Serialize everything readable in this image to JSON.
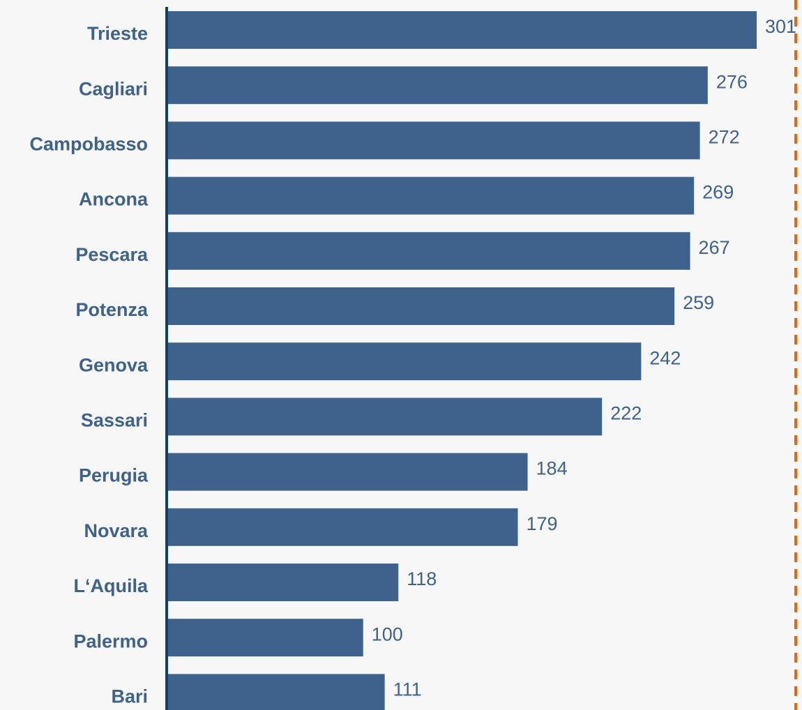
{
  "chart_data": {
    "type": "bar",
    "orientation": "horizontal",
    "categories": [
      "Trieste",
      "Cagliari",
      "Campobasso",
      "Ancona",
      "Pescara",
      "Potenza",
      "Genova",
      "Sassari",
      "Perugia",
      "Novara",
      "L‘Aquila",
      "Palermo",
      "Bari"
    ],
    "values": [
      301,
      276,
      272,
      269,
      267,
      259,
      242,
      222,
      184,
      179,
      118,
      100,
      111
    ],
    "value_labels": [
      "301",
      "276",
      "272",
      "269",
      "267",
      "259",
      "242",
      "222",
      "184",
      "179",
      "118",
      "100",
      "111"
    ],
    "title": "",
    "xlabel": "",
    "ylabel": "",
    "xlim": [
      0,
      301
    ],
    "grid": false,
    "legend": "none",
    "reference_line": "dashed vertical line at right edge of plot"
  },
  "colors": {
    "bar": "#3e628b",
    "category_label": "#3e628b",
    "value_label": "#3e628b",
    "axis": "#0f3f6c",
    "reference_line": "#e8650a",
    "background": "#f7f7f7"
  }
}
